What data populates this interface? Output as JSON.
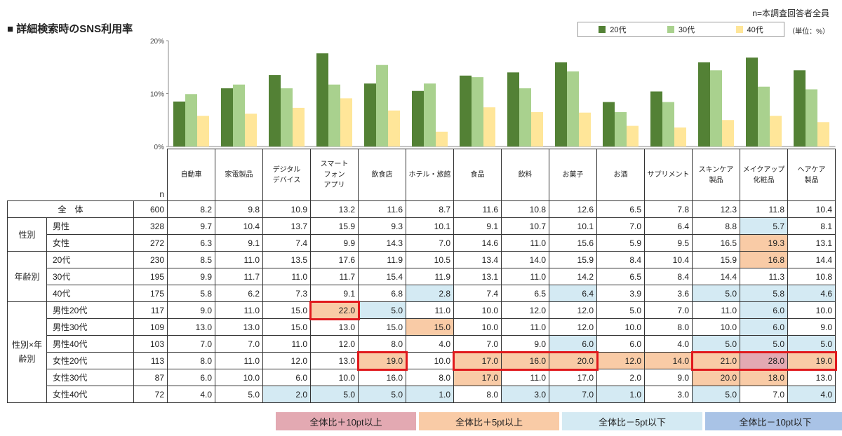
{
  "title": "■ 詳細検索時のSNS利用率",
  "note_n": "n=本調査回答者全員",
  "unit": "（単位：%）",
  "colors": {
    "s20": "#538135",
    "s30": "#a9d18e",
    "s40": "#ffe699",
    "plus10": "#e3a9b2",
    "plus5": "#f9cba6",
    "minus5": "#d4eaf3",
    "minus10": "#a9c3e6",
    "highlight": "#e0191d"
  },
  "legend": [
    "20代",
    "30代",
    "40代"
  ],
  "n_header": "n",
  "chart_data": {
    "type": "bar",
    "categories": [
      "自動車",
      "家電製品",
      "デジタルデバイス",
      "スマートフォンアプリ",
      "飲食店",
      "ホテル・旅館",
      "食品",
      "飲料",
      "お菓子",
      "お酒",
      "サプリメント",
      "スキンケア製品",
      "メイクアップ化粧品",
      "ヘアケア製品"
    ],
    "series": [
      {
        "name": "20代",
        "values": [
          8.5,
          11.0,
          13.5,
          17.6,
          11.9,
          10.5,
          13.4,
          14.0,
          15.9,
          8.4,
          10.4,
          15.9,
          16.8,
          14.4
        ]
      },
      {
        "name": "30代",
        "values": [
          9.9,
          11.7,
          11.0,
          11.7,
          15.4,
          11.9,
          13.1,
          11.0,
          14.2,
          6.5,
          8.4,
          14.4,
          11.3,
          10.8
        ]
      },
      {
        "name": "40代",
        "values": [
          5.8,
          6.2,
          7.3,
          9.1,
          6.8,
          2.8,
          7.4,
          6.5,
          6.4,
          3.9,
          3.6,
          5.0,
          5.8,
          4.6
        ]
      }
    ],
    "yticks": [
      "0%",
      "10%",
      "20%"
    ],
    "ylim": [
      0,
      20
    ]
  },
  "headers": [
    [
      "自動車"
    ],
    [
      "家電製品"
    ],
    [
      "デジタル",
      "デバイス"
    ],
    [
      "スマート",
      "フォン",
      "アプリ"
    ],
    [
      "飲食店"
    ],
    [
      "ホテル・旅館"
    ],
    [
      "食品"
    ],
    [
      "飲料"
    ],
    [
      "お菓子"
    ],
    [
      "お酒"
    ],
    [
      "サプリメント"
    ],
    [
      "スキンケア",
      "製品"
    ],
    [
      "メイクアップ",
      "化粧品"
    ],
    [
      "ヘアケア",
      "製品"
    ]
  ],
  "rows": [
    {
      "g": "全　体",
      "s": "",
      "n": "600",
      "v": [
        "8.2",
        "9.8",
        "10.9",
        "13.2",
        "11.6",
        "8.7",
        "11.6",
        "10.8",
        "12.6",
        "6.5",
        "7.8",
        "12.3",
        "11.8",
        "10.4"
      ],
      "c": []
    },
    {
      "g": "性別",
      "s": "男性",
      "n": "328",
      "v": [
        "9.7",
        "10.4",
        "13.7",
        "15.9",
        "9.3",
        "10.1",
        "9.1",
        "10.7",
        "10.1",
        "7.0",
        "6.4",
        "8.8",
        "5.7",
        "8.1"
      ],
      "c": [
        [
          12,
          "minus5"
        ]
      ]
    },
    {
      "g": "",
      "s": "女性",
      "n": "272",
      "v": [
        "6.3",
        "9.1",
        "7.4",
        "9.9",
        "14.3",
        "7.0",
        "14.6",
        "11.0",
        "15.6",
        "5.9",
        "9.5",
        "16.5",
        "19.3",
        "13.1"
      ],
      "c": [
        [
          12,
          "plus5"
        ]
      ]
    },
    {
      "g": "年齢別",
      "s": "20代",
      "n": "230",
      "v": [
        "8.5",
        "11.0",
        "13.5",
        "17.6",
        "11.9",
        "10.5",
        "13.4",
        "14.0",
        "15.9",
        "8.4",
        "10.4",
        "15.9",
        "16.8",
        "14.4"
      ],
      "c": [
        [
          12,
          "plus5"
        ]
      ]
    },
    {
      "g": "",
      "s": "30代",
      "n": "195",
      "v": [
        "9.9",
        "11.7",
        "11.0",
        "11.7",
        "15.4",
        "11.9",
        "13.1",
        "11.0",
        "14.2",
        "6.5",
        "8.4",
        "14.4",
        "11.3",
        "10.8"
      ],
      "c": []
    },
    {
      "g": "",
      "s": "40代",
      "n": "175",
      "v": [
        "5.8",
        "6.2",
        "7.3",
        "9.1",
        "6.8",
        "2.8",
        "7.4",
        "6.5",
        "6.4",
        "3.9",
        "3.6",
        "5.0",
        "5.8",
        "4.6"
      ],
      "c": [
        [
          5,
          "minus5"
        ],
        [
          8,
          "minus5"
        ],
        [
          11,
          "minus5"
        ],
        [
          12,
          "minus5"
        ],
        [
          13,
          "minus5"
        ]
      ]
    },
    {
      "g": "性別×年齢別",
      "s": "男性20代",
      "n": "117",
      "v": [
        "9.0",
        "11.0",
        "15.0",
        "22.0",
        "5.0",
        "11.0",
        "10.0",
        "12.0",
        "12.0",
        "5.0",
        "7.0",
        "11.0",
        "6.0",
        "10.0"
      ],
      "c": [
        [
          3,
          "plus5"
        ],
        [
          4,
          "minus5"
        ],
        [
          12,
          "minus5"
        ]
      ]
    },
    {
      "g": "",
      "s": "男性30代",
      "n": "109",
      "v": [
        "13.0",
        "13.0",
        "15.0",
        "13.0",
        "15.0",
        "15.0",
        "10.0",
        "11.0",
        "12.0",
        "10.0",
        "8.0",
        "10.0",
        "6.0",
        "9.0"
      ],
      "c": [
        [
          5,
          "plus5"
        ],
        [
          12,
          "minus5"
        ]
      ]
    },
    {
      "g": "",
      "s": "男性40代",
      "n": "103",
      "v": [
        "7.0",
        "7.0",
        "11.0",
        "12.0",
        "8.0",
        "4.0",
        "7.0",
        "9.0",
        "6.0",
        "6.0",
        "4.0",
        "5.0",
        "5.0",
        "5.0"
      ],
      "c": [
        [
          8,
          "minus5"
        ],
        [
          11,
          "minus5"
        ],
        [
          12,
          "minus5"
        ],
        [
          13,
          "minus5"
        ]
      ]
    },
    {
      "g": "",
      "s": "女性20代",
      "n": "113",
      "v": [
        "8.0",
        "11.0",
        "12.0",
        "13.0",
        "19.0",
        "10.0",
        "17.0",
        "16.0",
        "20.0",
        "12.0",
        "14.0",
        "21.0",
        "28.0",
        "19.0"
      ],
      "c": [
        [
          4,
          "plus5"
        ],
        [
          6,
          "plus5"
        ],
        [
          7,
          "plus5"
        ],
        [
          8,
          "plus5"
        ],
        [
          9,
          "plus5"
        ],
        [
          10,
          "plus5"
        ],
        [
          11,
          "plus5"
        ],
        [
          12,
          "plus10"
        ],
        [
          13,
          "plus5"
        ]
      ]
    },
    {
      "g": "",
      "s": "女性30代",
      "n": "87",
      "v": [
        "6.0",
        "10.0",
        "6.0",
        "10.0",
        "16.0",
        "8.0",
        "17.0",
        "11.0",
        "17.0",
        "2.0",
        "9.0",
        "20.0",
        "18.0",
        "13.0"
      ],
      "c": [
        [
          6,
          "plus5"
        ],
        [
          11,
          "plus5"
        ],
        [
          12,
          "plus5"
        ]
      ]
    },
    {
      "g": "",
      "s": "女性40代",
      "n": "72",
      "v": [
        "4.0",
        "5.0",
        "2.0",
        "5.0",
        "5.0",
        "1.0",
        "8.0",
        "3.0",
        "7.0",
        "1.0",
        "3.0",
        "5.0",
        "7.0",
        "4.0"
      ],
      "c": [
        [
          2,
          "minus5"
        ],
        [
          3,
          "minus5"
        ],
        [
          4,
          "minus5"
        ],
        [
          5,
          "minus5"
        ],
        [
          7,
          "minus5"
        ],
        [
          8,
          "minus5"
        ],
        [
          9,
          "minus5"
        ],
        [
          11,
          "minus5"
        ],
        [
          13,
          "minus5"
        ]
      ]
    }
  ],
  "bottom_legend": [
    "全体比＋10pt以上",
    "全体比＋5pt以上",
    "全体比－5pt以下",
    "全体比－10pt以下"
  ]
}
